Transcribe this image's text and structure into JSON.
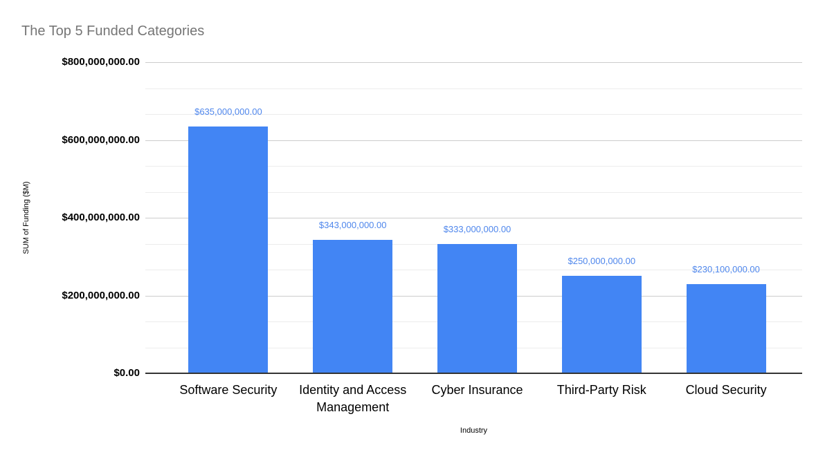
{
  "chart_data": {
    "type": "bar",
    "title": "The Top 5 Funded Categories",
    "xlabel": "Industry",
    "ylabel": "SUM of Funding ($M)",
    "categories": [
      "Software Security",
      "Identity and Access Management",
      "Cyber Insurance",
      "Third-Party Risk",
      "Cloud Security"
    ],
    "values": [
      635000000,
      343000000,
      333000000,
      250000000,
      230100000
    ],
    "value_labels": [
      "$635,000,000.00",
      "$343,000,000.00",
      "$333,000,000.00",
      "$250,000,000.00",
      "$230,100,000.00"
    ],
    "ylim": [
      0,
      800000000
    ],
    "y_ticks": [
      {
        "value": 0,
        "label": "$0.00"
      },
      {
        "value": 200000000,
        "label": "$200,000,000.00"
      },
      {
        "value": 400000000,
        "label": "$400,000,000.00"
      },
      {
        "value": 600000000,
        "label": "$600,000,000.00"
      },
      {
        "value": 800000000,
        "label": "$800,000,000.00"
      }
    ],
    "minor_gridlines_between_majors": 2,
    "grid": true,
    "legend_position": "none",
    "colors": {
      "bar": "#4285f4",
      "value_label": "#4e86ec",
      "title": "#757575",
      "axis_text": "#000000",
      "major_gridline": "#cccccc",
      "minor_gridline": "#ececec",
      "axis_line": "#333333",
      "background": "#ffffff"
    }
  }
}
